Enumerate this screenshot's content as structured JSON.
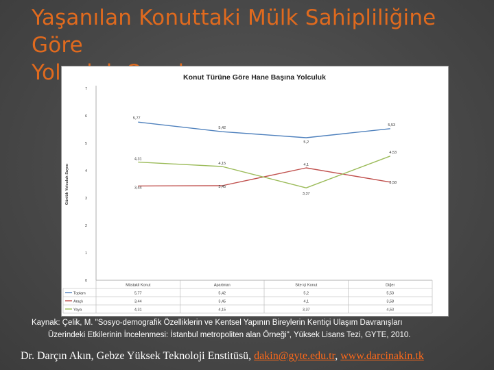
{
  "slide": {
    "title_line1": "Yaşanılan Konuttaki Mülk Sahipliliğine Göre",
    "title_line2": "Yolculuk Oranları",
    "source_line1": "Kaynak: Çelik, M. \"Sosyo-demografik Özelliklerin ve Kentsel Yapının Bireylerin Kentiçi Ulaşım Davranışları",
    "source_line2": "Üzerindeki Etkilerinin İncelenmesi: İstanbul metropoliten alan Örneği\", Yüksek Lisans Tezi, GYTE, 2010.",
    "footer_text": "Dr. Darçın Akın, Gebze Yüksek Teknoloji Enstitüsü,",
    "footer_email": "dakin@gyte.edu.tr",
    "footer_separator": ",",
    "footer_site": "www.darcinakin.tk"
  },
  "colors": {
    "title": "#e06a1e",
    "link": "#ff6a1a",
    "toplam": "#4f81bd",
    "arac": "#c0504d",
    "yaya": "#9bbb59"
  },
  "chart_data": {
    "type": "line",
    "title": "Konut Türüne Göre Hane Başına Yolculuk",
    "ylabel": "Günlük Yolculuk Sayısı",
    "xlabel": "",
    "ylim": [
      0,
      7
    ],
    "yticks": [
      "0",
      "1",
      "2",
      "3",
      "4",
      "5",
      "6",
      "7"
    ],
    "categories": [
      "Müstakil Konut",
      "Apartman",
      "Site içi Konut",
      "Diğer"
    ],
    "grid": false,
    "legend": "data-table",
    "series": [
      {
        "name": "Toplam",
        "values": [
          5.77,
          5.42,
          5.2,
          5.53
        ],
        "labels": [
          "5,77",
          "5,42",
          "5,2",
          "5,53"
        ],
        "color": "#4f81bd"
      },
      {
        "name": "Araçlı",
        "values": [
          3.44,
          3.45,
          4.1,
          3.58
        ],
        "labels": [
          "3,44",
          "3,45",
          "4,1",
          "3,58"
        ],
        "color": "#c0504d"
      },
      {
        "name": "Yaya",
        "values": [
          4.31,
          4.15,
          3.37,
          4.53
        ],
        "labels": [
          "4,31",
          "4,15",
          "3,37",
          "4,53"
        ],
        "color": "#9bbb59"
      }
    ]
  }
}
